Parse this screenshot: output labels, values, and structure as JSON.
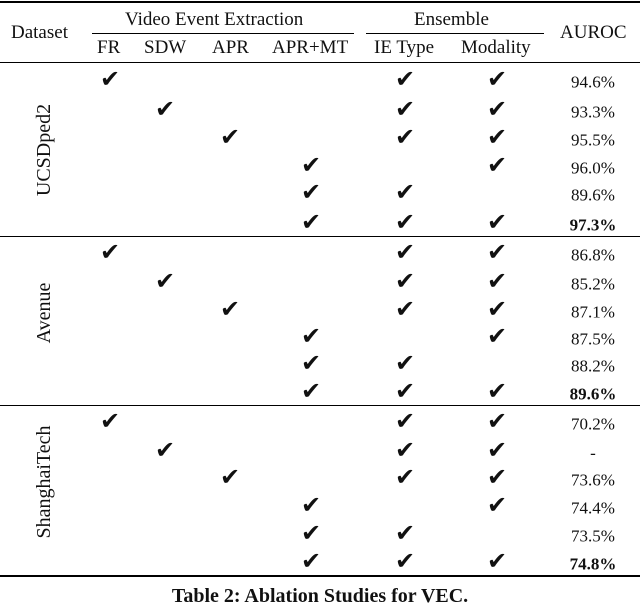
{
  "header": {
    "dataset": "Dataset",
    "group_video": "Video Event Extraction",
    "group_ensemble": "Ensemble",
    "auroc": "AUROC",
    "columns": [
      "FR",
      "SDW",
      "APR",
      "APR+MT",
      "IE Type",
      "Modality"
    ]
  },
  "check_symbol": "✔",
  "groups": [
    {
      "name": "UCSDped2",
      "rows": [
        {
          "checks": [
            true,
            false,
            false,
            false,
            true,
            true
          ],
          "auroc": "94.6%",
          "best": false
        },
        {
          "checks": [
            false,
            true,
            false,
            false,
            true,
            true
          ],
          "auroc": "93.3%",
          "best": false
        },
        {
          "checks": [
            false,
            false,
            true,
            false,
            true,
            true
          ],
          "auroc": "95.5%",
          "best": false
        },
        {
          "checks": [
            false,
            false,
            false,
            true,
            false,
            true
          ],
          "auroc": "96.0%",
          "best": false
        },
        {
          "checks": [
            false,
            false,
            false,
            true,
            true,
            false
          ],
          "auroc": "89.6%",
          "best": false
        },
        {
          "checks": [
            false,
            false,
            false,
            true,
            true,
            true
          ],
          "auroc": "97.3%",
          "best": true
        }
      ]
    },
    {
      "name": "Avenue",
      "rows": [
        {
          "checks": [
            true,
            false,
            false,
            false,
            true,
            true
          ],
          "auroc": "86.8%",
          "best": false
        },
        {
          "checks": [
            false,
            true,
            false,
            false,
            true,
            true
          ],
          "auroc": "85.2%",
          "best": false
        },
        {
          "checks": [
            false,
            false,
            true,
            false,
            true,
            true
          ],
          "auroc": "87.1%",
          "best": false
        },
        {
          "checks": [
            false,
            false,
            false,
            true,
            false,
            true
          ],
          "auroc": "87.5%",
          "best": false
        },
        {
          "checks": [
            false,
            false,
            false,
            true,
            true,
            false
          ],
          "auroc": "88.2%",
          "best": false
        },
        {
          "checks": [
            false,
            false,
            false,
            true,
            true,
            true
          ],
          "auroc": "89.6%",
          "best": true
        }
      ]
    },
    {
      "name": "ShanghaiTech",
      "rows": [
        {
          "checks": [
            true,
            false,
            false,
            false,
            true,
            true
          ],
          "auroc": "70.2%",
          "best": false
        },
        {
          "checks": [
            false,
            true,
            false,
            false,
            true,
            true
          ],
          "auroc": "-",
          "best": false
        },
        {
          "checks": [
            false,
            false,
            true,
            false,
            true,
            true
          ],
          "auroc": "73.6%",
          "best": false
        },
        {
          "checks": [
            false,
            false,
            false,
            true,
            false,
            true
          ],
          "auroc": "74.4%",
          "best": false
        },
        {
          "checks": [
            false,
            false,
            false,
            true,
            true,
            false
          ],
          "auroc": "73.5%",
          "best": false
        },
        {
          "checks": [
            false,
            false,
            false,
            true,
            true,
            true
          ],
          "auroc": "74.8%",
          "best": true
        }
      ]
    }
  ],
  "caption": "Table 2: Ablation Studies for VEC."
}
